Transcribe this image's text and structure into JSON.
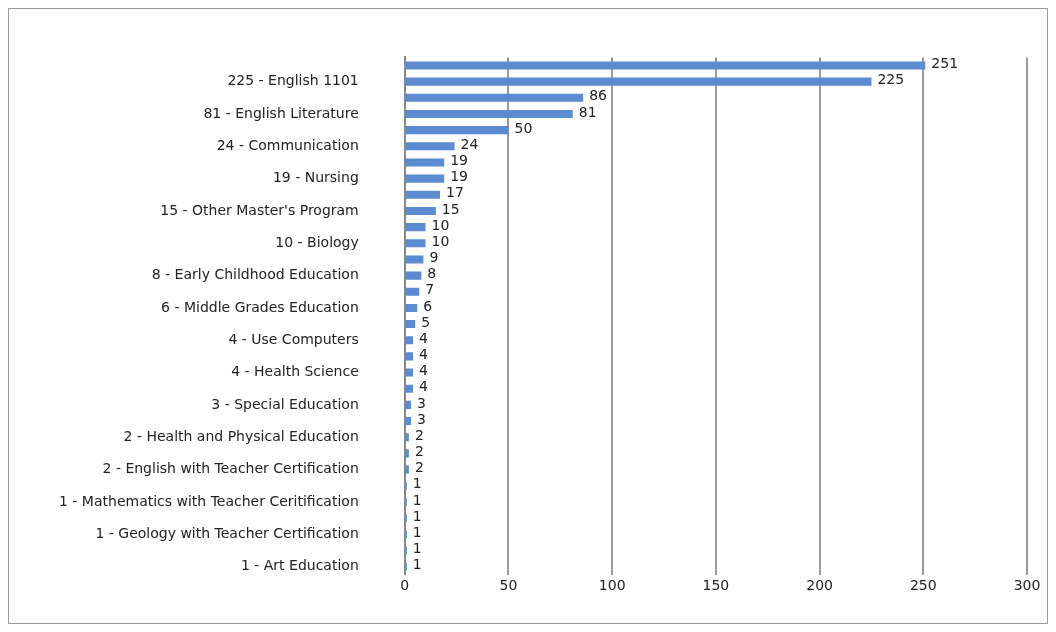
{
  "chart_data": {
    "type": "bar",
    "orientation": "horizontal",
    "categories": [
      null,
      "225 - English 1101",
      null,
      "81 - English Literature",
      null,
      "24 - Communication",
      null,
      "19 - Nursing",
      null,
      "15 - Other Master's Program",
      null,
      "10 - Biology",
      null,
      "8 - Early Childhood Education",
      null,
      "6 - Middle Grades Education",
      null,
      "4 - Use Computers",
      null,
      "4 - Health Science",
      null,
      "3 - Special Education",
      null,
      "2 - Health and Physical Education",
      null,
      "2 - English with Teacher Certification",
      null,
      "1 - Mathematics with Teacher Ceritification",
      null,
      "1 - Geology with Teacher Certification",
      null,
      "1 - Art Education"
    ],
    "values": [
      251,
      225,
      86,
      81,
      50,
      24,
      19,
      19,
      17,
      15,
      10,
      10,
      9,
      8,
      7,
      6,
      5,
      4,
      4,
      4,
      4,
      3,
      3,
      2,
      2,
      2,
      1,
      1,
      1,
      1,
      1,
      1
    ],
    "color": "#5b8bd0",
    "xlim": [
      0,
      300
    ],
    "xticks": [
      0,
      50,
      100,
      150,
      200,
      250,
      300
    ],
    "grid": "x",
    "data_labels": true
  }
}
